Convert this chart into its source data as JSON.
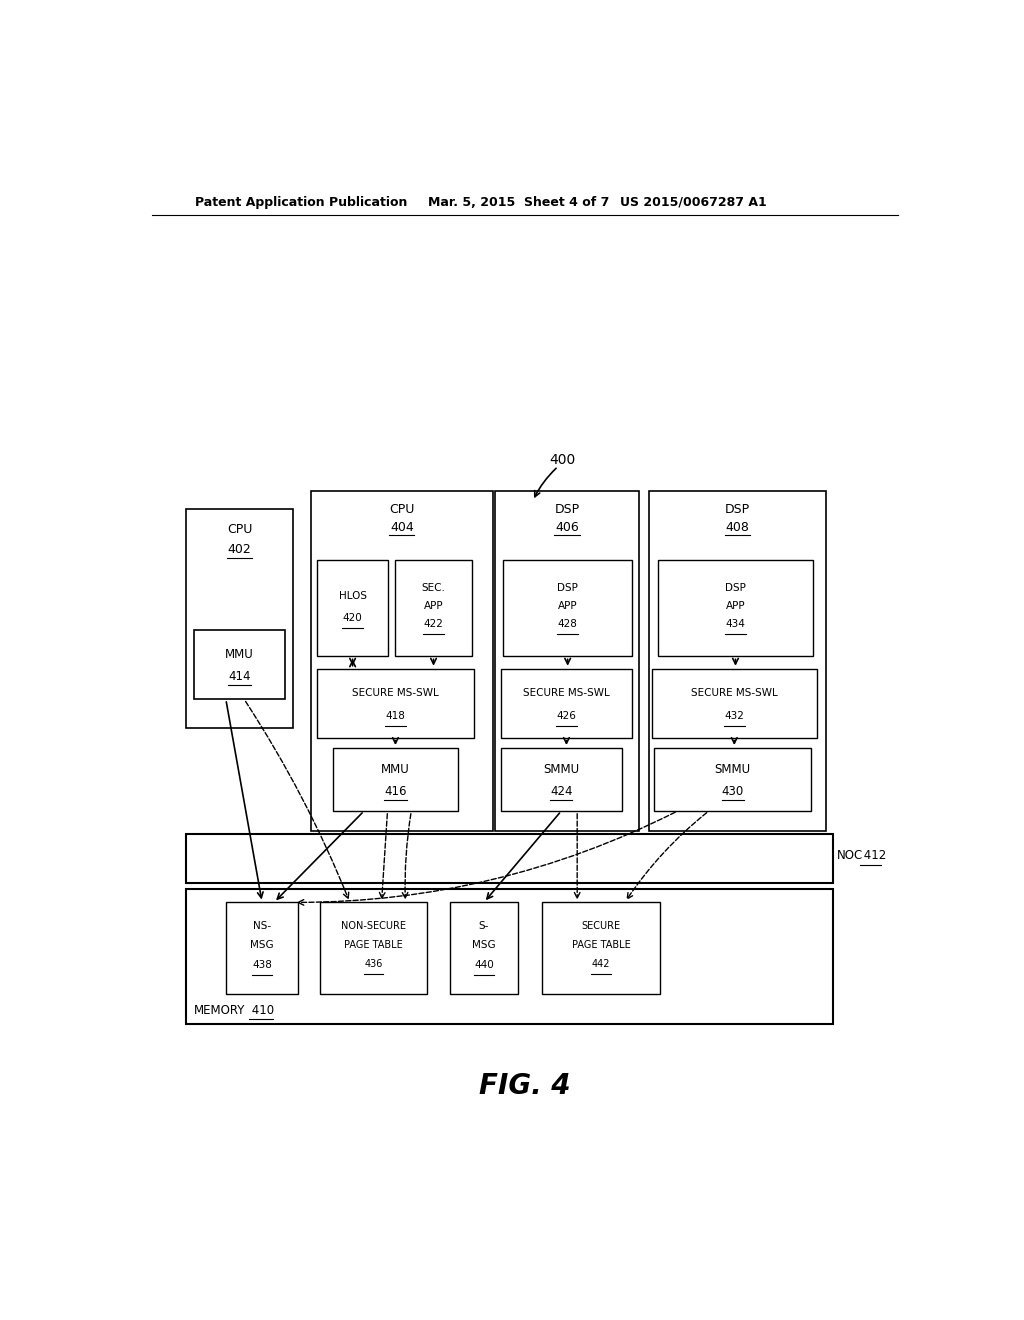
{
  "bg_color": "#ffffff",
  "header_text": "Patent Application Publication",
  "header_date": "Mar. 5, 2015  Sheet 4 of 7",
  "header_patent": "US 2015/0067287 A1",
  "fig_label": "FIG. 4",
  "label_400": "400"
}
